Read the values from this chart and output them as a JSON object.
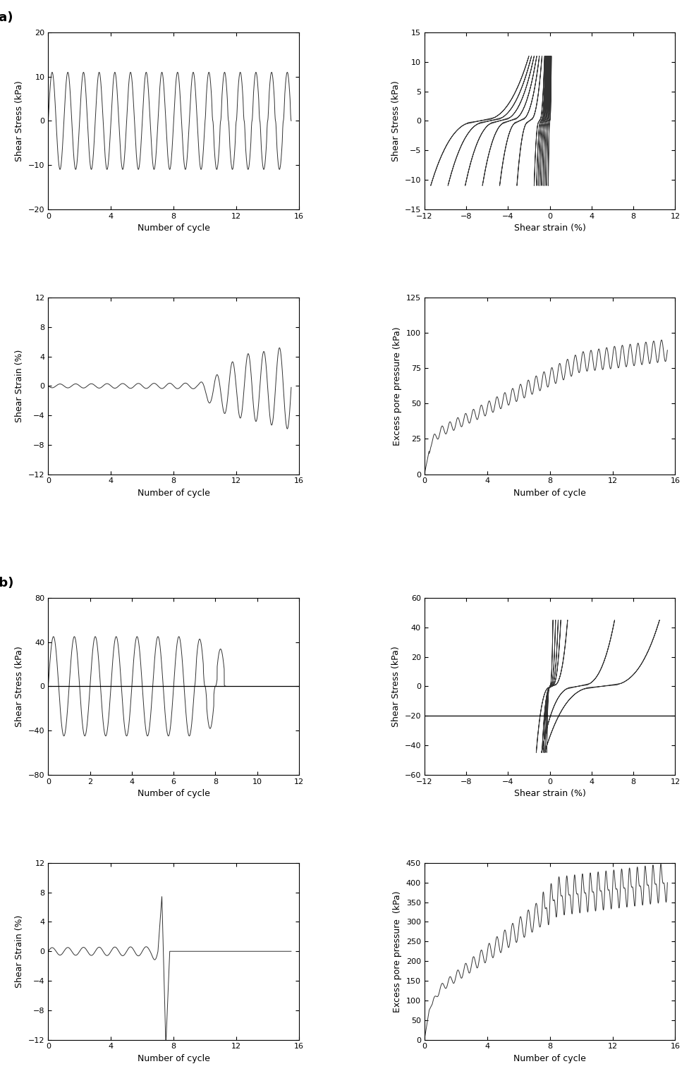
{
  "panel_a": {
    "label": "(a)",
    "plot1": {
      "xlabel": "Number of cycle",
      "ylabel": "Shear Stress (kPa)",
      "ylim": [
        -20,
        20
      ],
      "xlim": [
        0,
        16
      ],
      "yticks": [
        -20,
        -10,
        0,
        10,
        20
      ],
      "xticks": [
        0,
        4,
        8,
        12,
        16
      ]
    },
    "plot2": {
      "xlabel": "Shear strain (%)",
      "ylabel": "Shear Stress (kPa)",
      "ylim": [
        -15,
        15
      ],
      "xlim": [
        -12,
        12
      ],
      "yticks": [
        -15,
        -10,
        -5,
        0,
        5,
        10,
        15
      ],
      "xticks": [
        -12,
        -8,
        -4,
        0,
        4,
        8,
        12
      ]
    },
    "plot3": {
      "xlabel": "Number of cycle",
      "ylabel": "Shear Strain (%)",
      "ylim": [
        -12,
        12
      ],
      "xlim": [
        0,
        16
      ],
      "yticks": [
        -12,
        -8,
        -4,
        0,
        4,
        8,
        12
      ],
      "xticks": [
        0,
        4,
        8,
        12,
        16
      ]
    },
    "plot4": {
      "xlabel": "Number of cycle",
      "ylabel": "Excess pore pressure (kPa)",
      "ylim": [
        0,
        125
      ],
      "xlim": [
        0,
        16
      ],
      "yticks": [
        0,
        25,
        50,
        75,
        100,
        125
      ],
      "xticks": [
        0,
        4,
        8,
        12,
        16
      ]
    }
  },
  "panel_b": {
    "label": "(b)",
    "plot1": {
      "xlabel": "Number of cycle",
      "ylabel": "Shear Stress (kPa)",
      "ylim": [
        -80,
        80
      ],
      "xlim": [
        0,
        12
      ],
      "yticks": [
        -80,
        -40,
        0,
        40,
        80
      ],
      "xticks": [
        0,
        2,
        4,
        6,
        8,
        10,
        12
      ]
    },
    "plot2": {
      "xlabel": "Shear strain (%)",
      "ylabel": "Shear Stress (kPa)",
      "ylim": [
        -60,
        60
      ],
      "xlim": [
        -12,
        12
      ],
      "yticks": [
        -60,
        -40,
        -20,
        0,
        20,
        40,
        60
      ],
      "xticks": [
        -12,
        -8,
        -4,
        0,
        4,
        8,
        12
      ]
    },
    "plot3": {
      "xlabel": "Number of cycle",
      "ylabel": "Shear Strain (%)",
      "ylim": [
        -12,
        12
      ],
      "xlim": [
        0,
        16
      ],
      "yticks": [
        -12,
        -8,
        -4,
        0,
        4,
        8,
        12
      ],
      "xticks": [
        0,
        4,
        8,
        12,
        16
      ]
    },
    "plot4": {
      "xlabel": "Number of cycle",
      "ylabel": "Excess pore pressure  (kPa)",
      "ylim": [
        0,
        450
      ],
      "xlim": [
        0,
        16
      ],
      "yticks": [
        0,
        50,
        100,
        150,
        200,
        250,
        300,
        350,
        400,
        450
      ],
      "xticks": [
        0,
        4,
        8,
        12,
        16
      ]
    }
  },
  "line_color": "#333333",
  "line_width": 0.7,
  "font_size": 9,
  "tick_font_size": 8,
  "label_font_size": 9
}
